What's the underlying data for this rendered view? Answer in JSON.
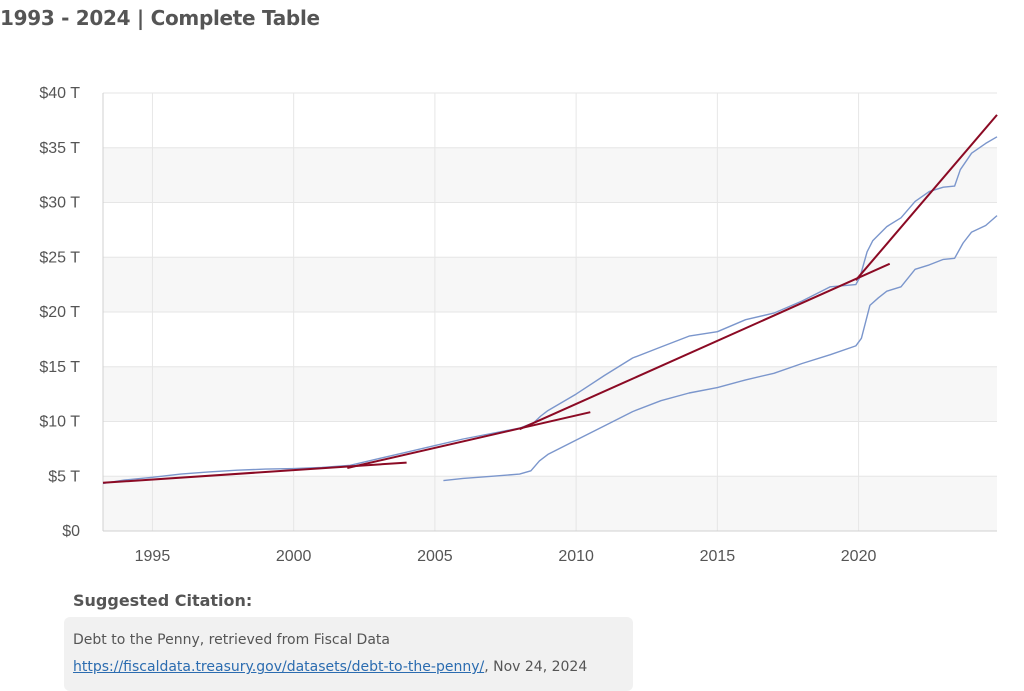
{
  "heading": "1993 - 2024 | Complete Table",
  "chart_data": {
    "type": "line",
    "xlim": [
      1993.25,
      2024.9
    ],
    "ylim": [
      0,
      40
    ],
    "grid": true,
    "band_fills": true,
    "x_ticks": [
      1995,
      2000,
      2005,
      2010,
      2015,
      2020
    ],
    "y_ticks": [
      0,
      5,
      10,
      15,
      20,
      25,
      30,
      35,
      40
    ],
    "y_tick_labels": [
      "$0",
      "$5 T",
      "$10 T",
      "$15 T",
      "$20 T",
      "$25 T",
      "$30 T",
      "$35 T",
      "$40 T"
    ],
    "series": [
      {
        "color": "#7b96cc",
        "x": [
          1993.25,
          1994,
          1995,
          1996,
          1997,
          1998,
          1999,
          2000,
          2001,
          2002,
          2003,
          2004,
          2005,
          2006,
          2007,
          2008,
          2008.5,
          2008.75,
          2009,
          2010,
          2011,
          2012,
          2013,
          2014,
          2015,
          2016,
          2017,
          2018,
          2019,
          2019.9,
          2020.05,
          2020.3,
          2020.5,
          2021,
          2021.5,
          2022,
          2022.5,
          2023,
          2023.4,
          2023.6,
          2024,
          2024.5,
          2024.9
        ],
        "y": [
          4.35,
          4.65,
          4.9,
          5.2,
          5.4,
          5.55,
          5.65,
          5.7,
          5.8,
          6.0,
          6.6,
          7.2,
          7.8,
          8.4,
          8.9,
          9.4,
          9.9,
          10.5,
          11.0,
          12.5,
          14.2,
          15.8,
          16.8,
          17.8,
          18.2,
          19.3,
          19.9,
          21.0,
          22.3,
          22.5,
          23.2,
          25.5,
          26.5,
          27.8,
          28.6,
          30.1,
          31.0,
          31.4,
          31.5,
          33.0,
          34.5,
          35.4,
          36.0
        ]
      },
      {
        "color": "#7b96cc",
        "x": [
          2005.3,
          2006,
          2007,
          2008,
          2008.4,
          2008.7,
          2009,
          2010,
          2011,
          2012,
          2013,
          2014,
          2015,
          2016,
          2017,
          2018,
          2019,
          2019.9,
          2020.1,
          2020.4,
          2020.7,
          2021,
          2021.5,
          2022,
          2022.5,
          2023,
          2023.4,
          2023.7,
          2024,
          2024.5,
          2024.9
        ],
        "y": [
          4.6,
          4.8,
          5.0,
          5.2,
          5.5,
          6.4,
          7.0,
          8.3,
          9.6,
          10.9,
          11.9,
          12.6,
          13.1,
          13.8,
          14.4,
          15.3,
          16.1,
          16.9,
          17.6,
          20.6,
          21.3,
          21.9,
          22.3,
          23.9,
          24.3,
          24.8,
          24.9,
          26.3,
          27.3,
          27.9,
          28.8
        ]
      },
      {
        "color": "#8b0a24",
        "x": [
          1993.25,
          2004.0
        ],
        "y": [
          4.4,
          6.25
        ]
      },
      {
        "color": "#8b0a24",
        "x": [
          2001.9,
          2010.5
        ],
        "y": [
          5.75,
          10.85
        ]
      },
      {
        "color": "#8b0a24",
        "x": [
          2008.0,
          2021.1
        ],
        "y": [
          9.3,
          24.4
        ]
      },
      {
        "color": "#8b0a24",
        "x": [
          2019.9,
          2024.9
        ],
        "y": [
          22.9,
          38.0
        ]
      }
    ]
  },
  "citation": {
    "title": "Suggested Citation:",
    "line1": "Debt to the Penny, retrieved from Fiscal Data",
    "link": "https://fiscaldata.treasury.gov/datasets/debt-to-the-penny/",
    "suffix": ", Nov 24, 2024"
  }
}
